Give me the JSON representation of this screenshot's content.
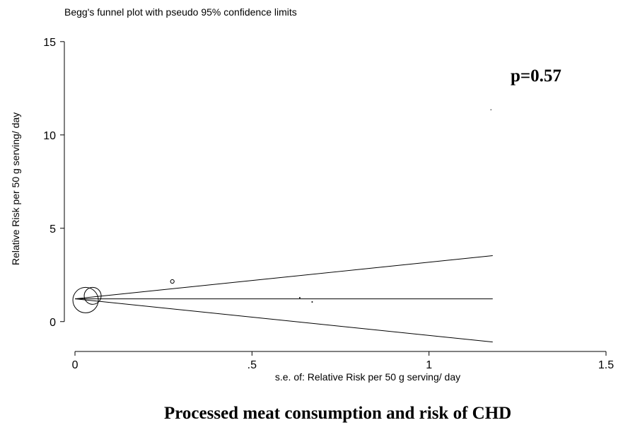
{
  "chart_data": {
    "type": "scatter",
    "title": "Begg's funnel plot with pseudo 95% confidence limits",
    "xlabel": "s.e. of: Relative Risk per 50 g serving/ day",
    "ylabel": "Relative Risk per 50 g serving/ day",
    "annotation": "p=0.57",
    "caption": "Processed meat consumption and risk of CHD",
    "xlim": [
      -0.03,
      1.53
    ],
    "ylim": [
      -1.6,
      15.6
    ],
    "xticks": [
      0,
      0.5,
      1,
      1.5
    ],
    "xtick_labels": [
      "0",
      ".5",
      "1",
      "1.5"
    ],
    "yticks": [
      0,
      5,
      10,
      15
    ],
    "ytick_labels": [
      "0",
      "5",
      "10",
      "15"
    ],
    "grid": false,
    "legend": "none",
    "pooled_estimate": 1.22,
    "pseudo_ci_x_range": [
      0,
      1.18
    ],
    "points": [
      {
        "x": 0.03,
        "y": 1.15,
        "marker": "circle",
        "r": 18
      },
      {
        "x": 0.05,
        "y": 1.38,
        "marker": "circle",
        "r": 12
      },
      {
        "x": 0.275,
        "y": 2.15,
        "marker": "circle",
        "r": 2.6
      },
      {
        "x": 0.635,
        "y": 1.28,
        "marker": "dot",
        "r": 1
      },
      {
        "x": 0.67,
        "y": 1.05,
        "marker": "dot",
        "r": 1
      },
      {
        "x": 1.175,
        "y": 11.35,
        "marker": "dot",
        "r": 0.7
      }
    ]
  }
}
